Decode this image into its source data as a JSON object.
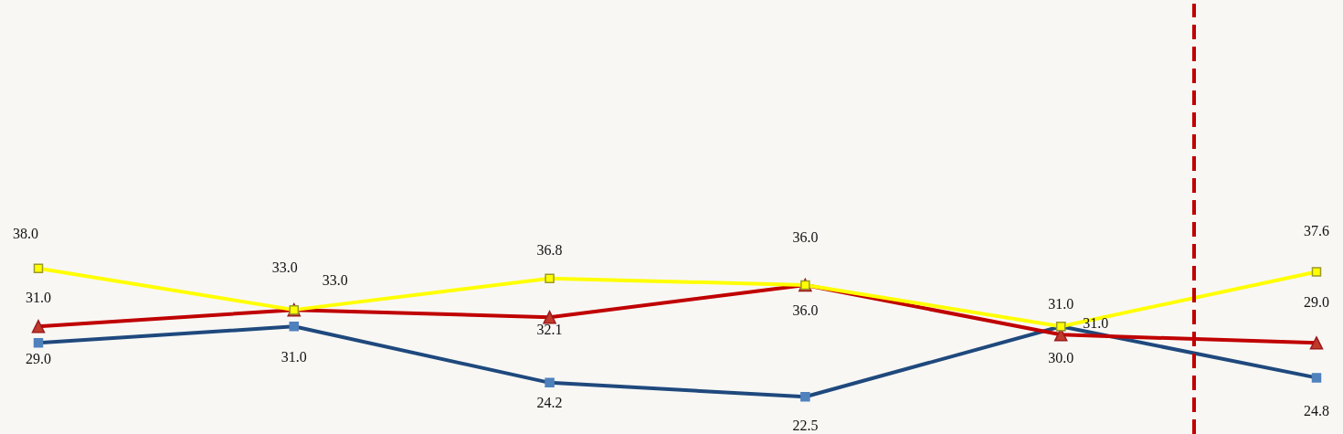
{
  "chart_data": {
    "type": "line",
    "categories": [
      null,
      null,
      null,
      null,
      null,
      null
    ],
    "ylim": [
      18,
      70
    ],
    "tick_labels": false,
    "line_style": "solid",
    "series": [
      {
        "color": "#1f497d",
        "marker": "square",
        "values": [
          29.0,
          31.0,
          24.2,
          22.5,
          31.0,
          24.8
        ],
        "value_labels": [
          "29.0",
          "31.0",
          "24.2",
          "22.5",
          "31.0",
          "24.8"
        ]
      },
      {
        "color": "#c00000",
        "marker": "triangle",
        "values": [
          31.0,
          33.0,
          32.1,
          36.0,
          30.0,
          29.0
        ],
        "value_labels": [
          "31.0",
          "33.0",
          "32.1",
          "36.0",
          "30.0",
          "29.0"
        ]
      },
      {
        "color": "#ffff00",
        "marker": "square",
        "values": [
          38.0,
          33.0,
          36.8,
          36.0,
          31.0,
          37.6
        ],
        "value_labels": [
          "38.0",
          "33.0",
          "36.8",
          "36.0",
          "31.0",
          "37.6"
        ]
      }
    ]
  }
}
